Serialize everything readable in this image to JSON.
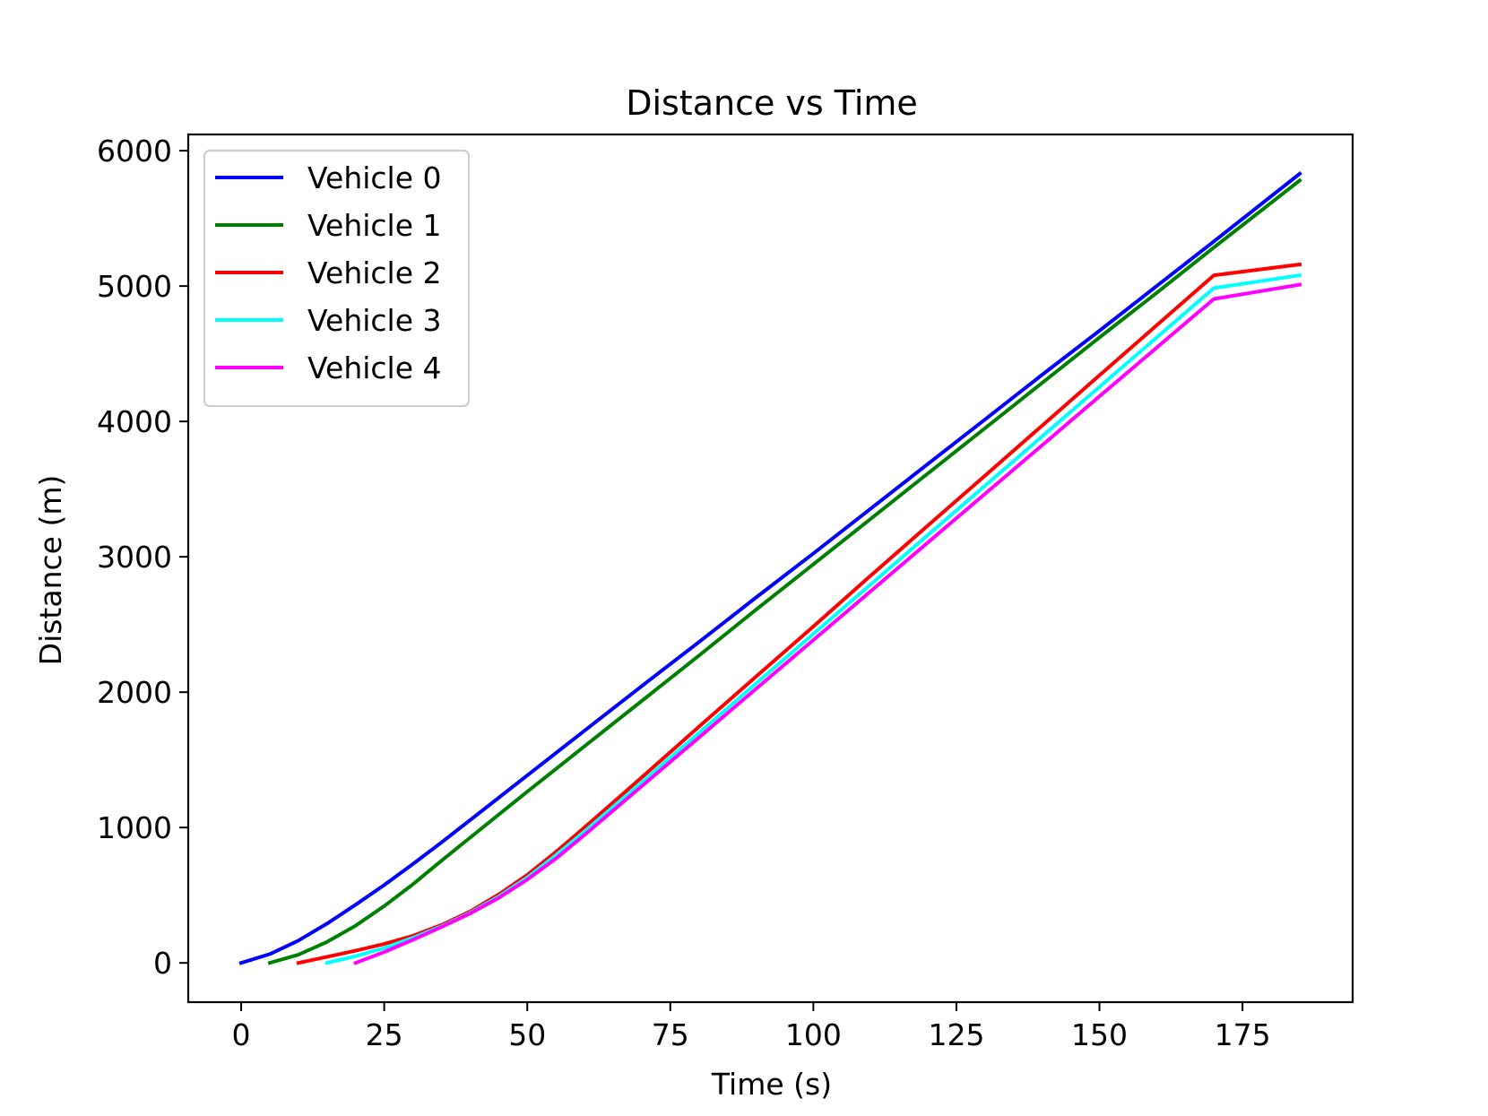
{
  "chart_data": {
    "type": "line",
    "title": "Distance vs Time",
    "xlabel": "Time (s)",
    "ylabel": "Distance (m)",
    "xlim": [
      -9.25,
      194.25
    ],
    "ylim": [
      -290,
      6120
    ],
    "xticks": [
      0,
      25,
      50,
      75,
      100,
      125,
      150,
      175
    ],
    "yticks": [
      0,
      1000,
      2000,
      3000,
      4000,
      5000,
      6000
    ],
    "grid": false,
    "legend_position": "upper-left",
    "series": [
      {
        "name": "Vehicle 0",
        "color": "#0000ff",
        "x": [
          0,
          5,
          10,
          15,
          20,
          25,
          30,
          35,
          40,
          45,
          50,
          60,
          70,
          80,
          90,
          100,
          110,
          120,
          130,
          140,
          150,
          160,
          170,
          185
        ],
        "y": [
          0,
          65,
          165,
          290,
          430,
          575,
          730,
          890,
          1055,
          1220,
          1385,
          1715,
          2045,
          2370,
          2700,
          3025,
          3355,
          3685,
          4015,
          4345,
          4670,
          5000,
          5330,
          5830
        ]
      },
      {
        "name": "Vehicle 1",
        "color": "#008000",
        "x": [
          5,
          10,
          15,
          20,
          25,
          30,
          35,
          40,
          45,
          50,
          60,
          70,
          80,
          90,
          100,
          110,
          120,
          130,
          140,
          150,
          160,
          170,
          185
        ],
        "y": [
          0,
          60,
          155,
          275,
          420,
          580,
          755,
          925,
          1095,
          1265,
          1600,
          1935,
          2270,
          2610,
          2945,
          3280,
          3615,
          3950,
          4285,
          4620,
          4950,
          5285,
          5780
        ]
      },
      {
        "name": "Vehicle 2",
        "color": "#ff0000",
        "x": [
          10,
          15,
          20,
          25,
          30,
          35,
          40,
          45,
          50,
          55,
          60,
          70,
          80,
          90,
          100,
          110,
          120,
          130,
          140,
          150,
          160,
          170,
          185
        ],
        "y": [
          0,
          45,
          90,
          140,
          200,
          280,
          380,
          505,
          650,
          820,
          1000,
          1370,
          1745,
          2115,
          2485,
          2860,
          3230,
          3600,
          3970,
          4340,
          4710,
          5080,
          5160
        ]
      },
      {
        "name": "Vehicle 3",
        "color": "#00ffff",
        "x": [
          15,
          20,
          25,
          30,
          35,
          40,
          45,
          50,
          55,
          60,
          70,
          80,
          90,
          100,
          110,
          120,
          130,
          140,
          150,
          160,
          170,
          185
        ],
        "y": [
          0,
          50,
          110,
          185,
          270,
          370,
          490,
          630,
          795,
          970,
          1335,
          1700,
          2065,
          2430,
          2795,
          3160,
          3525,
          3890,
          4255,
          4620,
          4985,
          5080
        ]
      },
      {
        "name": "Vehicle 4",
        "color": "#ff00ff",
        "x": [
          20,
          25,
          30,
          35,
          40,
          45,
          50,
          55,
          60,
          70,
          80,
          90,
          100,
          110,
          120,
          130,
          140,
          150,
          160,
          170,
          185
        ],
        "y": [
          0,
          80,
          170,
          265,
          365,
          480,
          615,
          770,
          945,
          1305,
          1665,
          2025,
          2385,
          2745,
          3105,
          3465,
          3825,
          4185,
          4545,
          4905,
          5010
        ]
      }
    ]
  }
}
